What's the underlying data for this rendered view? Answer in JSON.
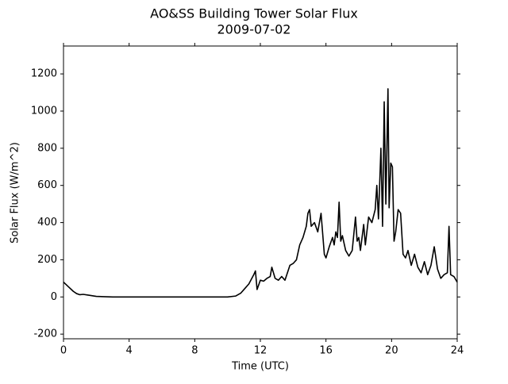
{
  "chart_data": {
    "type": "line",
    "title": "AO&SS Building Tower Solar Flux",
    "subtitle": "2009-07-02",
    "x_label": "Time (UTC)",
    "y_label": "Solar Flux (W/m^2)",
    "xlim": [
      0,
      24
    ],
    "xticks": [
      0,
      4,
      8,
      12,
      16,
      20,
      24
    ],
    "ylim": [
      -225,
      1350
    ],
    "yticks": [
      -200,
      0,
      200,
      400,
      600,
      800,
      1000,
      1200
    ],
    "series": [
      {
        "color": "#000000",
        "x": [
          0,
          0.3,
          0.6,
          0.8,
          1,
          1.2,
          1.5,
          2,
          3,
          4,
          6,
          8,
          10,
          10.5,
          10.8,
          11,
          11.3,
          11.6,
          11.7,
          11.8,
          12,
          12.2,
          12.4,
          12.6,
          12.7,
          12.9,
          13.1,
          13.3,
          13.5,
          13.8,
          14,
          14.2,
          14.4,
          14.6,
          14.8,
          14.9,
          15,
          15.1,
          15.3,
          15.5,
          15.7,
          15.9,
          16,
          16.2,
          16.4,
          16.5,
          16.6,
          16.7,
          16.8,
          16.9,
          17,
          17.2,
          17.4,
          17.6,
          17.8,
          17.9,
          18,
          18.1,
          18.3,
          18.4,
          18.6,
          18.8,
          19,
          19.1,
          19.2,
          19.35,
          19.45,
          19.55,
          19.65,
          19.7,
          19.78,
          19.85,
          19.95,
          20.05,
          20.15,
          20.25,
          20.4,
          20.55,
          20.7,
          20.85,
          21,
          21.2,
          21.4,
          21.6,
          21.8,
          22,
          22.2,
          22.4,
          22.6,
          22.8,
          23,
          23.2,
          23.4,
          23.5,
          23.6,
          23.8,
          24
        ],
        "values": [
          80,
          55,
          30,
          18,
          12,
          14,
          10,
          3,
          0,
          0,
          0,
          0,
          0,
          5,
          20,
          40,
          70,
          120,
          140,
          40,
          90,
          85,
          100,
          110,
          160,
          100,
          90,
          110,
          90,
          170,
          180,
          200,
          280,
          320,
          380,
          450,
          470,
          380,
          400,
          350,
          450,
          230,
          210,
          270,
          320,
          280,
          350,
          320,
          510,
          300,
          330,
          250,
          220,
          250,
          430,
          300,
          320,
          250,
          390,
          280,
          430,
          400,
          470,
          600,
          420,
          800,
          380,
          1050,
          500,
          730,
          1120,
          480,
          720,
          700,
          300,
          350,
          470,
          450,
          230,
          210,
          250,
          170,
          230,
          160,
          130,
          190,
          120,
          170,
          270,
          150,
          100,
          120,
          130,
          380,
          120,
          110,
          80
        ]
      }
    ]
  }
}
